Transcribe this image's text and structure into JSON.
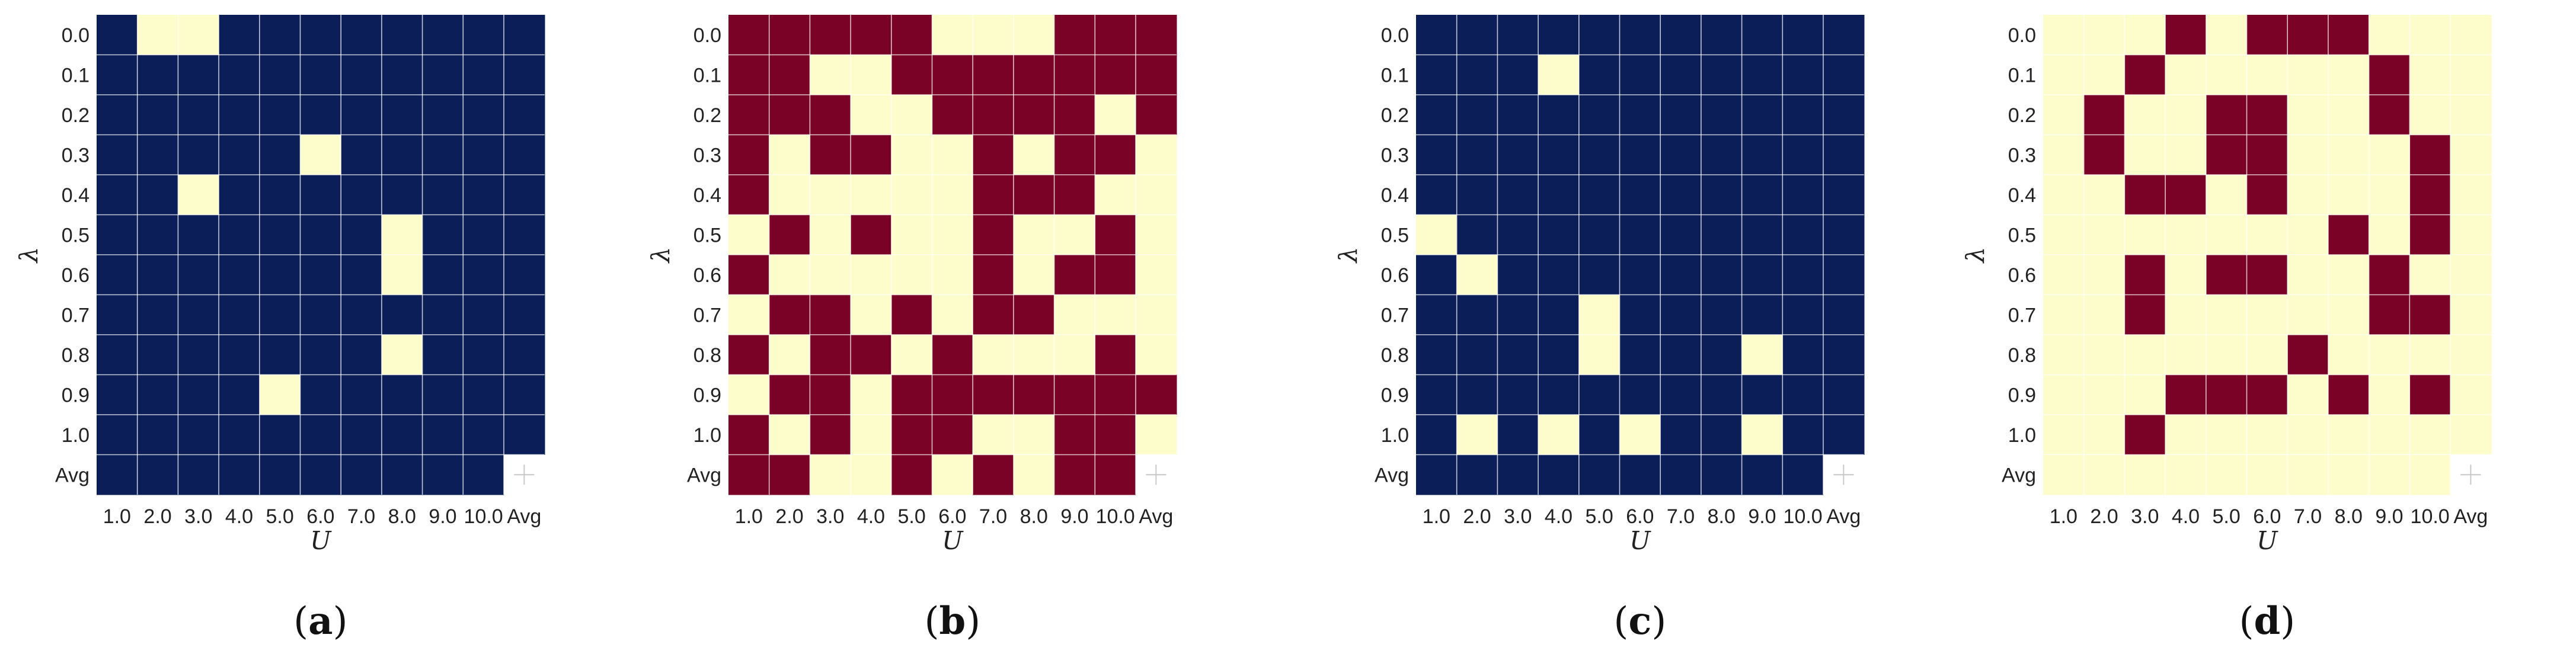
{
  "colors": {
    "dark_blue": "#0b1e57",
    "dark_red": "#7a0226",
    "cream": "#fdfdcc",
    "blank": "#ffffff"
  },
  "chart_data": [
    {
      "type": "heatmap",
      "panel_label": "a",
      "xlabel": "U",
      "ylabel": "λ",
      "x_categories": [
        "1.0",
        "2.0",
        "3.0",
        "4.0",
        "5.0",
        "6.0",
        "7.0",
        "8.0",
        "9.0",
        "10.0",
        "Avg"
      ],
      "y_categories": [
        "0.0",
        "0.1",
        "0.2",
        "0.3",
        "0.4",
        "0.5",
        "0.6",
        "0.7",
        "0.8",
        "0.9",
        "1.0",
        "Avg"
      ],
      "palette": [
        "#fdfdcc",
        "#0b1e57"
      ],
      "values": [
        [
          1,
          0,
          0,
          1,
          1,
          1,
          1,
          1,
          1,
          1,
          1
        ],
        [
          1,
          1,
          1,
          1,
          1,
          1,
          1,
          1,
          1,
          1,
          1
        ],
        [
          1,
          1,
          1,
          1,
          1,
          1,
          1,
          1,
          1,
          1,
          1
        ],
        [
          1,
          1,
          1,
          1,
          1,
          0,
          1,
          1,
          1,
          1,
          1
        ],
        [
          1,
          1,
          0,
          1,
          1,
          1,
          1,
          1,
          1,
          1,
          1
        ],
        [
          1,
          1,
          1,
          1,
          1,
          1,
          1,
          0,
          1,
          1,
          1
        ],
        [
          1,
          1,
          1,
          1,
          1,
          1,
          1,
          0,
          1,
          1,
          1
        ],
        [
          1,
          1,
          1,
          1,
          1,
          1,
          1,
          1,
          1,
          1,
          1
        ],
        [
          1,
          1,
          1,
          1,
          1,
          1,
          1,
          0,
          1,
          1,
          1
        ],
        [
          1,
          1,
          1,
          1,
          0,
          1,
          1,
          1,
          1,
          1,
          1
        ],
        [
          1,
          1,
          1,
          1,
          1,
          1,
          1,
          1,
          1,
          1,
          1
        ],
        [
          1,
          1,
          1,
          1,
          1,
          1,
          1,
          1,
          1,
          1,
          null
        ]
      ]
    },
    {
      "type": "heatmap",
      "panel_label": "b",
      "xlabel": "U",
      "ylabel": "λ",
      "x_categories": [
        "1.0",
        "2.0",
        "3.0",
        "4.0",
        "5.0",
        "6.0",
        "7.0",
        "8.0",
        "9.0",
        "10.0",
        "Avg"
      ],
      "y_categories": [
        "0.0",
        "0.1",
        "0.2",
        "0.3",
        "0.4",
        "0.5",
        "0.6",
        "0.7",
        "0.8",
        "0.9",
        "1.0",
        "Avg"
      ],
      "palette": [
        "#fdfdcc",
        "#7a0226"
      ],
      "values": [
        [
          1,
          1,
          1,
          1,
          1,
          0,
          0,
          0,
          1,
          1,
          1
        ],
        [
          1,
          1,
          0,
          0,
          1,
          1,
          1,
          1,
          1,
          1,
          1
        ],
        [
          1,
          1,
          1,
          0,
          0,
          1,
          1,
          1,
          1,
          0,
          1
        ],
        [
          1,
          0,
          1,
          1,
          0,
          0,
          1,
          0,
          1,
          1,
          0
        ],
        [
          1,
          0,
          0,
          0,
          0,
          0,
          1,
          1,
          1,
          0,
          0
        ],
        [
          0,
          1,
          0,
          1,
          0,
          0,
          1,
          0,
          0,
          1,
          0
        ],
        [
          1,
          0,
          0,
          0,
          0,
          0,
          1,
          0,
          1,
          1,
          0
        ],
        [
          0,
          1,
          1,
          0,
          1,
          0,
          1,
          1,
          0,
          0,
          0
        ],
        [
          1,
          0,
          1,
          1,
          0,
          1,
          0,
          0,
          0,
          1,
          0
        ],
        [
          0,
          1,
          1,
          0,
          1,
          1,
          1,
          1,
          1,
          1,
          1
        ],
        [
          1,
          0,
          1,
          0,
          1,
          1,
          0,
          0,
          1,
          1,
          0
        ],
        [
          1,
          1,
          0,
          0,
          1,
          0,
          1,
          0,
          1,
          1,
          null
        ]
      ]
    },
    {
      "type": "heatmap",
      "panel_label": "c",
      "xlabel": "U",
      "ylabel": "λ",
      "x_categories": [
        "1.0",
        "2.0",
        "3.0",
        "4.0",
        "5.0",
        "6.0",
        "7.0",
        "8.0",
        "9.0",
        "10.0",
        "Avg"
      ],
      "y_categories": [
        "0.0",
        "0.1",
        "0.2",
        "0.3",
        "0.4",
        "0.5",
        "0.6",
        "0.7",
        "0.8",
        "0.9",
        "1.0",
        "Avg"
      ],
      "palette": [
        "#fdfdcc",
        "#0b1e57"
      ],
      "values": [
        [
          1,
          1,
          1,
          1,
          1,
          1,
          1,
          1,
          1,
          1,
          1
        ],
        [
          1,
          1,
          1,
          0,
          1,
          1,
          1,
          1,
          1,
          1,
          1
        ],
        [
          1,
          1,
          1,
          1,
          1,
          1,
          1,
          1,
          1,
          1,
          1
        ],
        [
          1,
          1,
          1,
          1,
          1,
          1,
          1,
          1,
          1,
          1,
          1
        ],
        [
          1,
          1,
          1,
          1,
          1,
          1,
          1,
          1,
          1,
          1,
          1
        ],
        [
          0,
          1,
          1,
          1,
          1,
          1,
          1,
          1,
          1,
          1,
          1
        ],
        [
          1,
          0,
          1,
          1,
          1,
          1,
          1,
          1,
          1,
          1,
          1
        ],
        [
          1,
          1,
          1,
          1,
          0,
          1,
          1,
          1,
          1,
          1,
          1
        ],
        [
          1,
          1,
          1,
          1,
          0,
          1,
          1,
          1,
          0,
          1,
          1
        ],
        [
          1,
          1,
          1,
          1,
          1,
          1,
          1,
          1,
          1,
          1,
          1
        ],
        [
          1,
          0,
          1,
          0,
          1,
          0,
          1,
          1,
          0,
          1,
          1
        ],
        [
          1,
          1,
          1,
          1,
          1,
          1,
          1,
          1,
          1,
          1,
          null
        ]
      ]
    },
    {
      "type": "heatmap",
      "panel_label": "d",
      "xlabel": "U",
      "ylabel": "λ",
      "x_categories": [
        "1.0",
        "2.0",
        "3.0",
        "4.0",
        "5.0",
        "6.0",
        "7.0",
        "8.0",
        "9.0",
        "10.0",
        "Avg"
      ],
      "y_categories": [
        "0.0",
        "0.1",
        "0.2",
        "0.3",
        "0.4",
        "0.5",
        "0.6",
        "0.7",
        "0.8",
        "0.9",
        "1.0",
        "Avg"
      ],
      "palette": [
        "#fdfdcc",
        "#7a0226"
      ],
      "values": [
        [
          0,
          0,
          0,
          1,
          0,
          1,
          1,
          1,
          0,
          0,
          0
        ],
        [
          0,
          0,
          1,
          0,
          0,
          0,
          0,
          0,
          1,
          0,
          0
        ],
        [
          0,
          1,
          0,
          0,
          1,
          1,
          0,
          0,
          1,
          0,
          0
        ],
        [
          0,
          1,
          0,
          0,
          1,
          1,
          0,
          0,
          0,
          1,
          0
        ],
        [
          0,
          0,
          1,
          1,
          0,
          1,
          0,
          0,
          0,
          1,
          0
        ],
        [
          0,
          0,
          0,
          0,
          0,
          0,
          0,
          1,
          0,
          1,
          0
        ],
        [
          0,
          0,
          1,
          0,
          1,
          1,
          0,
          0,
          1,
          0,
          0
        ],
        [
          0,
          0,
          1,
          0,
          0,
          0,
          0,
          0,
          1,
          1,
          0
        ],
        [
          0,
          0,
          0,
          0,
          0,
          0,
          1,
          0,
          0,
          0,
          0
        ],
        [
          0,
          0,
          0,
          1,
          1,
          1,
          0,
          1,
          0,
          1,
          0
        ],
        [
          0,
          0,
          1,
          0,
          0,
          0,
          0,
          0,
          0,
          0,
          0
        ],
        [
          0,
          0,
          0,
          0,
          0,
          0,
          0,
          0,
          0,
          0,
          null
        ]
      ]
    }
  ]
}
